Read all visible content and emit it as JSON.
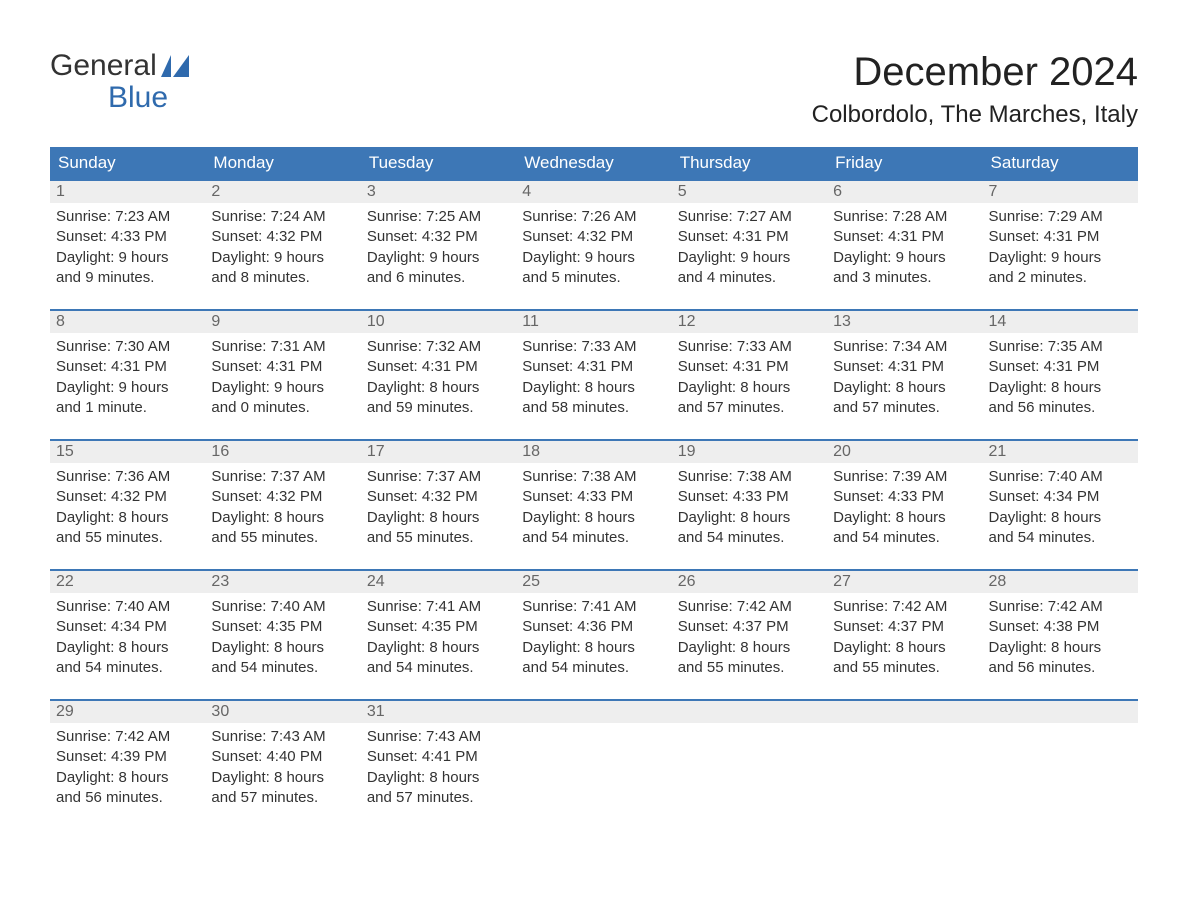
{
  "logo": {
    "word1": "General",
    "word2": "Blue"
  },
  "title": "December 2024",
  "location": "Colbordolo, The Marches, Italy",
  "colors": {
    "header_bg": "#3d77b6",
    "header_text": "#ffffff",
    "daynum_bg": "#eeeeee",
    "daynum_text": "#666666",
    "body_text": "#333333",
    "accent": "#2f6aad"
  },
  "weekdays": [
    "Sunday",
    "Monday",
    "Tuesday",
    "Wednesday",
    "Thursday",
    "Friday",
    "Saturday"
  ],
  "weeks": [
    [
      {
        "n": "1",
        "sunrise": "Sunrise: 7:23 AM",
        "sunset": "Sunset: 4:33 PM",
        "dl1": "Daylight: 9 hours",
        "dl2": "and 9 minutes."
      },
      {
        "n": "2",
        "sunrise": "Sunrise: 7:24 AM",
        "sunset": "Sunset: 4:32 PM",
        "dl1": "Daylight: 9 hours",
        "dl2": "and 8 minutes."
      },
      {
        "n": "3",
        "sunrise": "Sunrise: 7:25 AM",
        "sunset": "Sunset: 4:32 PM",
        "dl1": "Daylight: 9 hours",
        "dl2": "and 6 minutes."
      },
      {
        "n": "4",
        "sunrise": "Sunrise: 7:26 AM",
        "sunset": "Sunset: 4:32 PM",
        "dl1": "Daylight: 9 hours",
        "dl2": "and 5 minutes."
      },
      {
        "n": "5",
        "sunrise": "Sunrise: 7:27 AM",
        "sunset": "Sunset: 4:31 PM",
        "dl1": "Daylight: 9 hours",
        "dl2": "and 4 minutes."
      },
      {
        "n": "6",
        "sunrise": "Sunrise: 7:28 AM",
        "sunset": "Sunset: 4:31 PM",
        "dl1": "Daylight: 9 hours",
        "dl2": "and 3 minutes."
      },
      {
        "n": "7",
        "sunrise": "Sunrise: 7:29 AM",
        "sunset": "Sunset: 4:31 PM",
        "dl1": "Daylight: 9 hours",
        "dl2": "and 2 minutes."
      }
    ],
    [
      {
        "n": "8",
        "sunrise": "Sunrise: 7:30 AM",
        "sunset": "Sunset: 4:31 PM",
        "dl1": "Daylight: 9 hours",
        "dl2": "and 1 minute."
      },
      {
        "n": "9",
        "sunrise": "Sunrise: 7:31 AM",
        "sunset": "Sunset: 4:31 PM",
        "dl1": "Daylight: 9 hours",
        "dl2": "and 0 minutes."
      },
      {
        "n": "10",
        "sunrise": "Sunrise: 7:32 AM",
        "sunset": "Sunset: 4:31 PM",
        "dl1": "Daylight: 8 hours",
        "dl2": "and 59 minutes."
      },
      {
        "n": "11",
        "sunrise": "Sunrise: 7:33 AM",
        "sunset": "Sunset: 4:31 PM",
        "dl1": "Daylight: 8 hours",
        "dl2": "and 58 minutes."
      },
      {
        "n": "12",
        "sunrise": "Sunrise: 7:33 AM",
        "sunset": "Sunset: 4:31 PM",
        "dl1": "Daylight: 8 hours",
        "dl2": "and 57 minutes."
      },
      {
        "n": "13",
        "sunrise": "Sunrise: 7:34 AM",
        "sunset": "Sunset: 4:31 PM",
        "dl1": "Daylight: 8 hours",
        "dl2": "and 57 minutes."
      },
      {
        "n": "14",
        "sunrise": "Sunrise: 7:35 AM",
        "sunset": "Sunset: 4:31 PM",
        "dl1": "Daylight: 8 hours",
        "dl2": "and 56 minutes."
      }
    ],
    [
      {
        "n": "15",
        "sunrise": "Sunrise: 7:36 AM",
        "sunset": "Sunset: 4:32 PM",
        "dl1": "Daylight: 8 hours",
        "dl2": "and 55 minutes."
      },
      {
        "n": "16",
        "sunrise": "Sunrise: 7:37 AM",
        "sunset": "Sunset: 4:32 PM",
        "dl1": "Daylight: 8 hours",
        "dl2": "and 55 minutes."
      },
      {
        "n": "17",
        "sunrise": "Sunrise: 7:37 AM",
        "sunset": "Sunset: 4:32 PM",
        "dl1": "Daylight: 8 hours",
        "dl2": "and 55 minutes."
      },
      {
        "n": "18",
        "sunrise": "Sunrise: 7:38 AM",
        "sunset": "Sunset: 4:33 PM",
        "dl1": "Daylight: 8 hours",
        "dl2": "and 54 minutes."
      },
      {
        "n": "19",
        "sunrise": "Sunrise: 7:38 AM",
        "sunset": "Sunset: 4:33 PM",
        "dl1": "Daylight: 8 hours",
        "dl2": "and 54 minutes."
      },
      {
        "n": "20",
        "sunrise": "Sunrise: 7:39 AM",
        "sunset": "Sunset: 4:33 PM",
        "dl1": "Daylight: 8 hours",
        "dl2": "and 54 minutes."
      },
      {
        "n": "21",
        "sunrise": "Sunrise: 7:40 AM",
        "sunset": "Sunset: 4:34 PM",
        "dl1": "Daylight: 8 hours",
        "dl2": "and 54 minutes."
      }
    ],
    [
      {
        "n": "22",
        "sunrise": "Sunrise: 7:40 AM",
        "sunset": "Sunset: 4:34 PM",
        "dl1": "Daylight: 8 hours",
        "dl2": "and 54 minutes."
      },
      {
        "n": "23",
        "sunrise": "Sunrise: 7:40 AM",
        "sunset": "Sunset: 4:35 PM",
        "dl1": "Daylight: 8 hours",
        "dl2": "and 54 minutes."
      },
      {
        "n": "24",
        "sunrise": "Sunrise: 7:41 AM",
        "sunset": "Sunset: 4:35 PM",
        "dl1": "Daylight: 8 hours",
        "dl2": "and 54 minutes."
      },
      {
        "n": "25",
        "sunrise": "Sunrise: 7:41 AM",
        "sunset": "Sunset: 4:36 PM",
        "dl1": "Daylight: 8 hours",
        "dl2": "and 54 minutes."
      },
      {
        "n": "26",
        "sunrise": "Sunrise: 7:42 AM",
        "sunset": "Sunset: 4:37 PM",
        "dl1": "Daylight: 8 hours",
        "dl2": "and 55 minutes."
      },
      {
        "n": "27",
        "sunrise": "Sunrise: 7:42 AM",
        "sunset": "Sunset: 4:37 PM",
        "dl1": "Daylight: 8 hours",
        "dl2": "and 55 minutes."
      },
      {
        "n": "28",
        "sunrise": "Sunrise: 7:42 AM",
        "sunset": "Sunset: 4:38 PM",
        "dl1": "Daylight: 8 hours",
        "dl2": "and 56 minutes."
      }
    ],
    [
      {
        "n": "29",
        "sunrise": "Sunrise: 7:42 AM",
        "sunset": "Sunset: 4:39 PM",
        "dl1": "Daylight: 8 hours",
        "dl2": "and 56 minutes."
      },
      {
        "n": "30",
        "sunrise": "Sunrise: 7:43 AM",
        "sunset": "Sunset: 4:40 PM",
        "dl1": "Daylight: 8 hours",
        "dl2": "and 57 minutes."
      },
      {
        "n": "31",
        "sunrise": "Sunrise: 7:43 AM",
        "sunset": "Sunset: 4:41 PM",
        "dl1": "Daylight: 8 hours",
        "dl2": "and 57 minutes."
      },
      {
        "empty": true
      },
      {
        "empty": true
      },
      {
        "empty": true
      },
      {
        "empty": true
      }
    ]
  ]
}
